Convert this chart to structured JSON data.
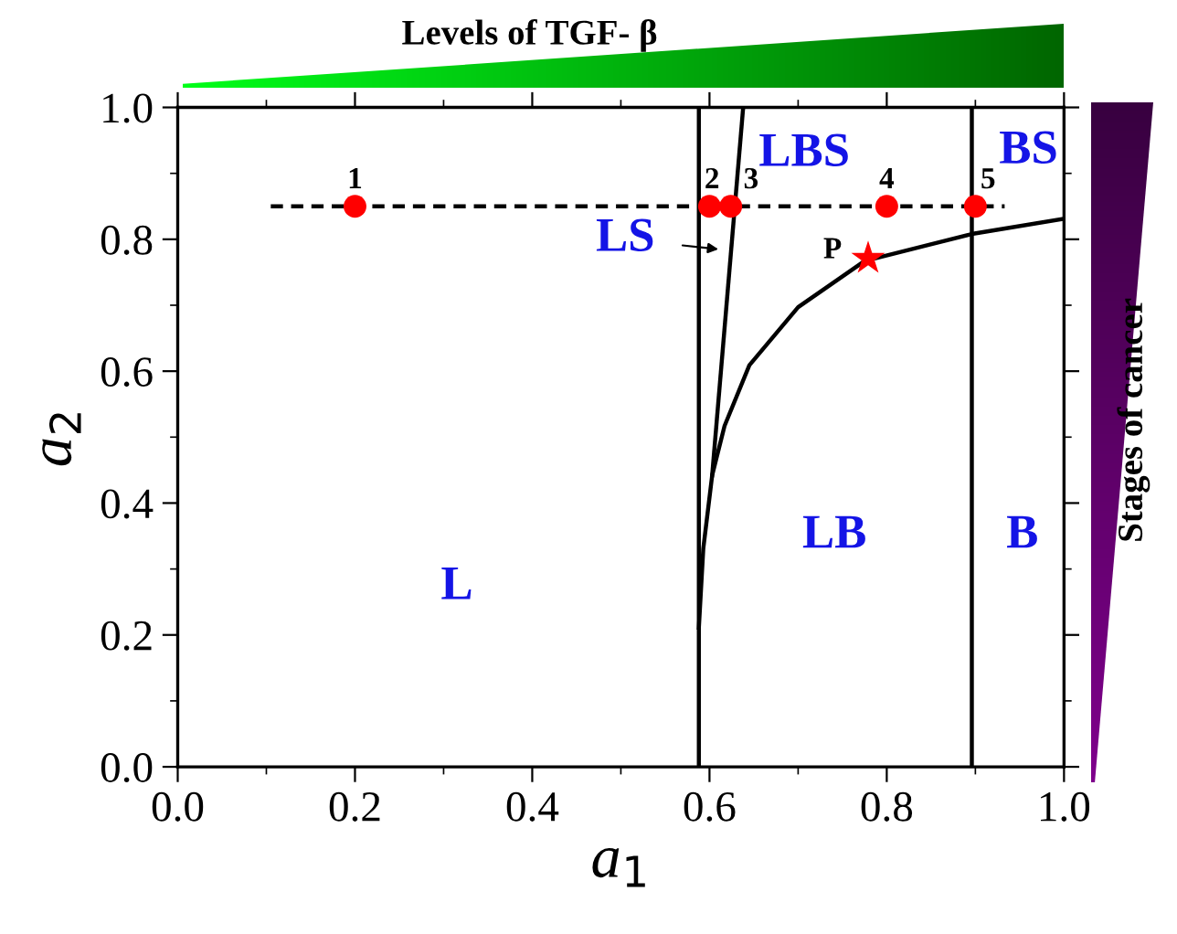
{
  "chart_data": {
    "type": "line",
    "title": "Levels of TGF- β",
    "xlabel": "a$_{1}$",
    "ylabel": "a$_{2}$",
    "xlim": [
      0,
      1
    ],
    "ylim": [
      0,
      1
    ],
    "xticks": [
      {
        "value": 0,
        "label": "0.0"
      },
      {
        "value": 0.2,
        "label": "0.2"
      },
      {
        "value": 0.4,
        "label": "0.4"
      },
      {
        "value": 0.6,
        "label": "0.6"
      },
      {
        "value": 0.8,
        "label": "0.8"
      },
      {
        "value": 1,
        "label": "1.0"
      }
    ],
    "yticks": [
      {
        "value": 0,
        "label": "0.0"
      },
      {
        "value": 0.2,
        "label": "0.2"
      },
      {
        "value": 0.4,
        "label": "0.4"
      },
      {
        "value": 0.6,
        "label": "0.6"
      },
      {
        "value": 0.8,
        "label": "0.8"
      },
      {
        "value": 1,
        "label": "1.0"
      }
    ],
    "grid": false,
    "series": [
      {
        "color": "#000000",
        "line_style": "solid",
        "marker": "none",
        "x": [
          0.588,
          0.588
        ],
        "values": [
          0.0,
          1.0
        ]
      },
      {
        "color": "#000000",
        "line_style": "solid",
        "marker": "none",
        "x": [
          0.896,
          0.896
        ],
        "values": [
          0.0,
          1.0
        ]
      },
      {
        "color": "#000000",
        "line_style": "solid",
        "marker": "none",
        "x": [
          0.588,
          0.593,
          0.603,
          0.617,
          0.645,
          0.7,
          0.775,
          0.896,
          1.0
        ],
        "values": [
          0.211,
          0.331,
          0.442,
          0.517,
          0.609,
          0.697,
          0.767,
          0.808,
          0.831
        ]
      },
      {
        "color": "#000000",
        "line_style": "solid",
        "marker": "none",
        "x": [
          0.603,
          0.638
        ],
        "values": [
          0.442,
          1.0
        ]
      },
      {
        "color": "#000000",
        "line_style": "dashed",
        "marker": "none",
        "x": [
          0.105,
          0.933
        ],
        "values": [
          0.85,
          0.85
        ]
      },
      {
        "type": "scatter",
        "color": "#ff0000",
        "marker": "circle",
        "x": [
          0.2,
          0.6,
          0.624,
          0.8,
          0.9
        ],
        "values": [
          0.85,
          0.85,
          0.85,
          0.85,
          0.85
        ]
      },
      {
        "type": "scatter",
        "color": "#ff0000",
        "marker": "star",
        "x": [
          0.779
        ],
        "values": [
          0.771
        ]
      }
    ],
    "annotations": [
      {
        "text": "1",
        "x": 0.2,
        "y": 0.85
      },
      {
        "text": "2",
        "x": 0.6,
        "y": 0.85
      },
      {
        "text": "3",
        "x": 0.624,
        "y": 0.85
      },
      {
        "text": "4",
        "x": 0.8,
        "y": 0.85
      },
      {
        "text": "5",
        "x": 0.9,
        "y": 0.85
      },
      {
        "text": "P",
        "x": 0.779,
        "y": 0.771
      },
      "LS",
      "L",
      "LB",
      "B",
      "LBS",
      "BS",
      "Stages of cancer"
    ]
  }
}
